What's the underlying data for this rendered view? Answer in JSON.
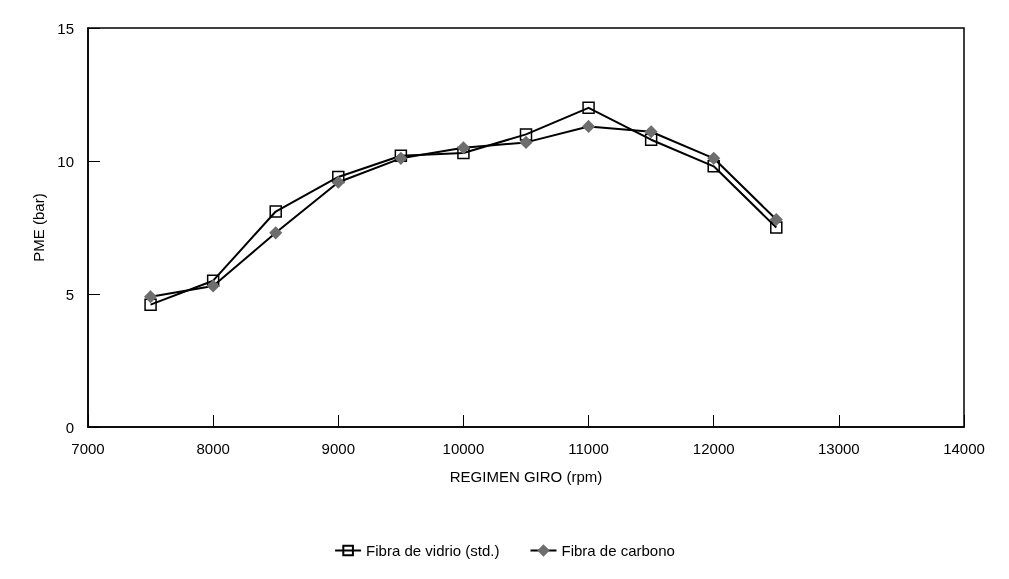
{
  "chart_data": {
    "type": "line",
    "xlabel": "REGIMEN GIRO (rpm)",
    "ylabel": "PME (bar)",
    "x": [
      7500,
      8000,
      8500,
      9000,
      9500,
      10000,
      10500,
      11000,
      11500,
      12000,
      12500
    ],
    "series": [
      {
        "name": "Fibra de vidrio (std.)",
        "color": "#000000",
        "marker": "square",
        "values": [
          4.6,
          5.5,
          8.1,
          9.4,
          10.2,
          10.3,
          11.0,
          12.0,
          10.8,
          9.8,
          7.5
        ]
      },
      {
        "name": "Fibra de carbono",
        "color": "#6e6e6e",
        "marker": "diamond",
        "values": [
          4.9,
          5.3,
          7.3,
          9.2,
          10.1,
          10.5,
          10.7,
          11.3,
          11.1,
          10.1,
          7.8
        ]
      }
    ],
    "xlim": [
      7000,
      14000
    ],
    "xticks": [
      7000,
      8000,
      9000,
      10000,
      11000,
      12000,
      13000,
      14000
    ],
    "ylim": [
      0,
      15
    ],
    "yticks": [
      0,
      5,
      10,
      15
    ],
    "grid": false,
    "legend": "bottom",
    "line_style": "solid"
  }
}
